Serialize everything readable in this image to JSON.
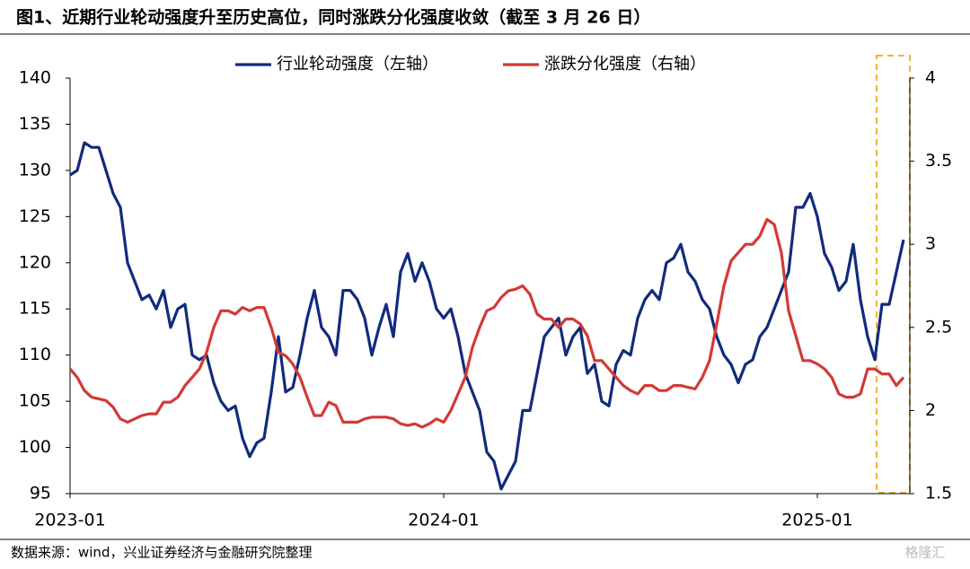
{
  "chart_data": {
    "type": "line",
    "title": "图1、近期行业轮动强度升至历史高位，同时涨跌分化强度收敛（截至 3 月 26 日）",
    "source": "数据来源：wind，兴业证券经济与金融研究院整理",
    "watermark": "格隆汇",
    "categories": [
      "2023-01",
      null,
      null,
      null,
      null,
      null,
      null,
      null,
      null,
      null,
      null,
      null,
      null,
      null,
      null,
      null,
      null,
      null,
      null,
      null,
      null,
      null,
      null,
      null,
      null,
      null,
      null,
      null,
      null,
      null,
      null,
      null,
      null,
      null,
      null,
      null,
      null,
      null,
      null,
      null,
      null,
      null,
      null,
      null,
      null,
      null,
      null,
      null,
      null,
      null,
      null,
      null,
      "2024-01",
      null,
      null,
      null,
      null,
      null,
      null,
      null,
      null,
      null,
      null,
      null,
      null,
      null,
      null,
      null,
      null,
      null,
      null,
      null,
      null,
      null,
      null,
      null,
      null,
      null,
      null,
      null,
      null,
      null,
      null,
      null,
      null,
      null,
      null,
      null,
      null,
      null,
      null,
      null,
      null,
      null,
      null,
      null,
      null,
      null,
      null,
      null,
      null,
      null,
      null,
      null,
      "2025-01",
      null,
      null,
      null,
      null,
      null,
      null,
      null,
      null,
      null,
      null,
      null,
      null
    ],
    "ylim": [
      95,
      140
    ],
    "yticks": [
      95,
      100,
      105,
      110,
      115,
      120,
      125,
      130,
      135,
      140
    ],
    "y2lim": [
      1.5,
      4
    ],
    "y2ticks": [
      1.5,
      2,
      2.5,
      3,
      3.5,
      4
    ],
    "legend": "top",
    "series": [
      {
        "name": "行业轮动强度（左轴）",
        "color": "#112b7d",
        "axis": "y",
        "values": [
          129.5,
          130,
          133,
          132.5,
          132.5,
          130,
          127.5,
          126,
          120,
          118,
          116,
          116.5,
          115,
          117,
          113,
          115,
          115.5,
          110,
          109.5,
          110,
          107,
          105,
          104,
          104.5,
          101,
          99,
          100.5,
          101,
          106,
          112,
          106,
          106.5,
          110,
          114,
          117,
          113,
          112,
          110,
          117,
          117,
          116,
          114,
          110,
          113,
          115.5,
          112,
          119,
          121,
          118,
          120,
          118,
          115,
          114,
          115,
          112,
          108,
          106,
          104,
          99.5,
          98.5,
          95.5,
          97,
          98.5,
          104,
          104,
          108,
          112,
          113,
          114,
          110,
          112,
          113,
          108,
          109,
          105,
          104.5,
          109,
          110.5,
          110,
          114,
          116,
          117,
          116,
          120,
          120.5,
          122,
          119,
          118,
          116,
          115,
          112,
          110,
          109,
          107,
          109,
          109.5,
          112,
          113,
          115,
          117,
          119,
          126,
          126,
          127.5,
          125,
          121,
          119.5,
          117,
          118,
          122,
          116,
          112,
          109.5,
          115.5,
          115.5,
          119,
          122.5
        ]
      },
      {
        "name": "涨跌分化强度（右轴）",
        "color": "#d23a36",
        "axis": "y2",
        "values": [
          2.25,
          2.2,
          2.12,
          2.08,
          2.07,
          2.06,
          2.02,
          1.95,
          1.93,
          1.95,
          1.97,
          1.98,
          1.98,
          2.05,
          2.05,
          2.08,
          2.15,
          2.2,
          2.25,
          2.35,
          2.5,
          2.6,
          2.6,
          2.58,
          2.62,
          2.6,
          2.62,
          2.62,
          2.5,
          2.35,
          2.33,
          2.28,
          2.2,
          2.08,
          1.97,
          1.97,
          2.05,
          2.03,
          1.93,
          1.93,
          1.93,
          1.95,
          1.96,
          1.96,
          1.96,
          1.95,
          1.92,
          1.91,
          1.92,
          1.9,
          1.92,
          1.95,
          1.93,
          2.0,
          2.1,
          2.2,
          2.38,
          2.5,
          2.6,
          2.62,
          2.68,
          2.72,
          2.73,
          2.75,
          2.7,
          2.58,
          2.55,
          2.55,
          2.5,
          2.55,
          2.55,
          2.52,
          2.45,
          2.3,
          2.3,
          2.25,
          2.2,
          2.15,
          2.12,
          2.1,
          2.15,
          2.15,
          2.12,
          2.12,
          2.15,
          2.15,
          2.14,
          2.13,
          2.2,
          2.3,
          2.52,
          2.75,
          2.9,
          2.95,
          3.0,
          3.0,
          3.05,
          3.15,
          3.12,
          2.95,
          2.6,
          2.45,
          2.3,
          2.3,
          2.28,
          2.25,
          2.2,
          2.1,
          2.08,
          2.08,
          2.1,
          2.25,
          2.25,
          2.22,
          2.22,
          2.15,
          2.2
        ]
      }
    ]
  }
}
